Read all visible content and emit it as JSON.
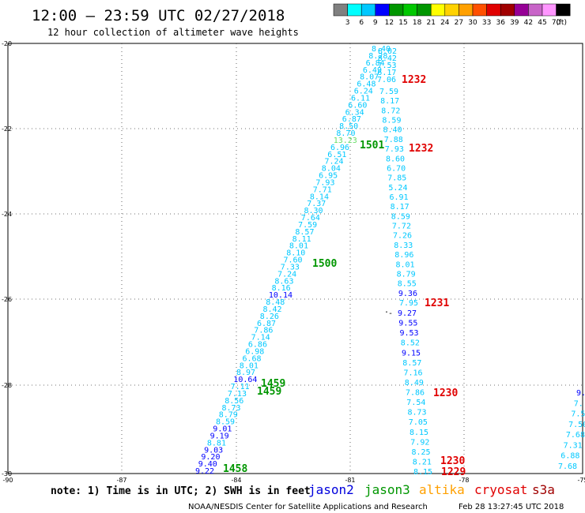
{
  "header": {
    "title": "12:00 – 23:59 UTC 02/27/2018",
    "subtitle": "12 hour collection of altimeter wave heights"
  },
  "legend": {
    "unit": "(ft)",
    "bins": [
      {
        "label": "",
        "color": "#808080"
      },
      {
        "label": "3",
        "color": "#00ffff"
      },
      {
        "label": "6",
        "color": "#00c8ff"
      },
      {
        "label": "9",
        "color": "#0000ff"
      },
      {
        "label": "12",
        "color": "#009600"
      },
      {
        "label": "15",
        "color": "#00c800"
      },
      {
        "label": "18",
        "color": "#009600"
      },
      {
        "label": "21",
        "color": "#ffff00"
      },
      {
        "label": "24",
        "color": "#ffd200"
      },
      {
        "label": "27",
        "color": "#ffa000"
      },
      {
        "label": "30",
        "color": "#ff5000"
      },
      {
        "label": "33",
        "color": "#e00000"
      },
      {
        "label": "36",
        "color": "#a00000"
      },
      {
        "label": "39",
        "color": "#960096"
      },
      {
        "label": "42",
        "color": "#c864c8"
      },
      {
        "label": "45",
        "color": "#ff96ff"
      },
      {
        "label": "70",
        "color": "#000000"
      }
    ]
  },
  "axes": {
    "x_ticks": [
      "-90",
      "-87",
      "-84",
      "-81",
      "-78",
      "-75"
    ],
    "y_ticks": [
      "-20",
      "-22",
      "-24",
      "-26",
      "-28",
      "-30"
    ]
  },
  "tracks": {
    "A": [
      {
        "v": "8.40",
        "c": "#00c8ff"
      },
      {
        "v": "8.28",
        "c": "#00c8ff"
      },
      {
        "v": "6.84",
        "c": "#00c8ff"
      },
      {
        "v": "6.49",
        "c": "#00c8ff"
      },
      {
        "v": "8.07",
        "c": "#00c8ff"
      },
      {
        "v": "6.48",
        "c": "#00c8ff"
      },
      {
        "v": "6.24",
        "c": "#00c8ff"
      },
      {
        "v": "6.11",
        "c": "#00c8ff"
      },
      {
        "v": "6.60",
        "c": "#00c8ff"
      },
      {
        "v": "6.34",
        "c": "#00c8ff"
      },
      {
        "v": "6.87",
        "c": "#00c8ff"
      },
      {
        "v": "8.50",
        "c": "#00c8ff"
      },
      {
        "v": "8.70",
        "c": "#00c8ff"
      },
      {
        "v": "13.23",
        "c": "#66dd66"
      },
      {
        "v": "6.96",
        "c": "#00c8ff"
      },
      {
        "v": "6.51",
        "c": "#00c8ff"
      },
      {
        "v": "7.24",
        "c": "#00c8ff"
      },
      {
        "v": "8.04",
        "c": "#00c8ff"
      },
      {
        "v": "6.95",
        "c": "#00c8ff"
      },
      {
        "v": "7.93",
        "c": "#00c8ff"
      },
      {
        "v": "7.71",
        "c": "#00c8ff"
      },
      {
        "v": "8.14",
        "c": "#00c8ff"
      },
      {
        "v": "7.37",
        "c": "#00c8ff"
      },
      {
        "v": "8.30",
        "c": "#00c8ff"
      },
      {
        "v": "7.64",
        "c": "#00c8ff"
      },
      {
        "v": "7.59",
        "c": "#00c8ff"
      },
      {
        "v": "8.57",
        "c": "#00c8ff"
      },
      {
        "v": "8.11",
        "c": "#00c8ff"
      },
      {
        "v": "8.01",
        "c": "#00c8ff"
      },
      {
        "v": "8.10",
        "c": "#00c8ff"
      },
      {
        "v": "7.60",
        "c": "#00c8ff"
      },
      {
        "v": "7.33",
        "c": "#00c8ff"
      },
      {
        "v": "7.24",
        "c": "#00c8ff"
      },
      {
        "v": "8.63",
        "c": "#00c8ff"
      },
      {
        "v": "8.16",
        "c": "#00c8ff"
      },
      {
        "v": "10.14",
        "c": "#0000ff"
      },
      {
        "v": "8.48",
        "c": "#00c8ff"
      },
      {
        "v": "8.42",
        "c": "#00c8ff"
      },
      {
        "v": "8.26",
        "c": "#00c8ff"
      },
      {
        "v": "6.87",
        "c": "#00c8ff"
      },
      {
        "v": "7.86",
        "c": "#00c8ff"
      },
      {
        "v": "7.14",
        "c": "#00c8ff"
      },
      {
        "v": "6.86",
        "c": "#00c8ff"
      },
      {
        "v": "6.98",
        "c": "#00c8ff"
      },
      {
        "v": "6.68",
        "c": "#00c8ff"
      },
      {
        "v": "8.01",
        "c": "#00c8ff"
      },
      {
        "v": "8.97",
        "c": "#00c8ff"
      },
      {
        "v": "10.64",
        "c": "#0000ff"
      },
      {
        "v": "7.11",
        "c": "#00c8ff"
      },
      {
        "v": "7.13",
        "c": "#00c8ff"
      },
      {
        "v": "8.56",
        "c": "#00c8ff"
      },
      {
        "v": "8.73",
        "c": "#00c8ff"
      },
      {
        "v": "8.79",
        "c": "#00c8ff"
      },
      {
        "v": "8.59",
        "c": "#00c8ff"
      },
      {
        "v": "9.01",
        "c": "#0000ff"
      },
      {
        "v": "9.19",
        "c": "#0000ff"
      },
      {
        "v": "8.81",
        "c": "#00c8ff"
      },
      {
        "v": "9.03",
        "c": "#0000ff"
      },
      {
        "v": "9.20",
        "c": "#0000ff"
      },
      {
        "v": "9.40",
        "c": "#0000ff"
      },
      {
        "v": "9.22",
        "c": "#0000ff"
      }
    ],
    "B": [
      {
        "v": "8.02",
        "c": "#00c8ff"
      },
      {
        "v": "8.42",
        "c": "#00c8ff"
      },
      {
        "v": "7.53",
        "c": "#00c8ff"
      },
      {
        "v": "6.17",
        "c": "#00c8ff"
      },
      {
        "v": "7.06",
        "c": "#00c8ff"
      }
    ],
    "C": [
      {
        "v": "7.59",
        "c": "#00c8ff"
      },
      {
        "v": "8.17",
        "c": "#00c8ff"
      },
      {
        "v": "8.72",
        "c": "#00c8ff"
      },
      {
        "v": "8.59",
        "c": "#00c8ff"
      },
      {
        "v": "8.40",
        "c": "#00c8ff"
      },
      {
        "v": "7.88",
        "c": "#00c8ff"
      },
      {
        "v": "7.93",
        "c": "#00c8ff"
      },
      {
        "v": "8.60",
        "c": "#00c8ff"
      },
      {
        "v": "6.70",
        "c": "#00c8ff"
      },
      {
        "v": "7.85",
        "c": "#00c8ff"
      },
      {
        "v": "5.24",
        "c": "#00c8ff"
      },
      {
        "v": "6.91",
        "c": "#00c8ff"
      },
      {
        "v": "8.17",
        "c": "#00c8ff"
      },
      {
        "v": "8.59",
        "c": "#00c8ff"
      },
      {
        "v": "7.72",
        "c": "#00c8ff"
      },
      {
        "v": "7.26",
        "c": "#00c8ff"
      },
      {
        "v": "8.33",
        "c": "#00c8ff"
      },
      {
        "v": "8.96",
        "c": "#00c8ff"
      },
      {
        "v": "8.01",
        "c": "#00c8ff"
      },
      {
        "v": "8.79",
        "c": "#00c8ff"
      },
      {
        "v": "8.55",
        "c": "#00c8ff"
      },
      {
        "v": "9.36",
        "c": "#0000ff"
      },
      {
        "v": "7.95",
        "c": "#00c8ff"
      }
    ],
    "D": [
      {
        "v": "9.27",
        "c": "#0000ff"
      },
      {
        "v": "9.55",
        "c": "#0000ff"
      },
      {
        "v": "9.53",
        "c": "#0000ff"
      },
      {
        "v": "8.52",
        "c": "#00c8ff"
      },
      {
        "v": "9.15",
        "c": "#0000ff"
      },
      {
        "v": "8.57",
        "c": "#00c8ff"
      },
      {
        "v": "7.16",
        "c": "#00c8ff"
      },
      {
        "v": "8.49",
        "c": "#00c8ff"
      },
      {
        "v": "7.86",
        "c": "#00c8ff"
      },
      {
        "v": "7.54",
        "c": "#00c8ff"
      },
      {
        "v": "8.73",
        "c": "#00c8ff"
      },
      {
        "v": "7.05",
        "c": "#00c8ff"
      },
      {
        "v": "8.15",
        "c": "#00c8ff"
      },
      {
        "v": "7.92",
        "c": "#00c8ff"
      },
      {
        "v": "8.25",
        "c": "#00c8ff"
      },
      {
        "v": "8.21",
        "c": "#00c8ff"
      },
      {
        "v": "8.15",
        "c": "#00c8ff"
      }
    ],
    "E": [
      {
        "v": "9.",
        "c": "#0000ff"
      },
      {
        "v": "7.",
        "c": "#00c8ff"
      },
      {
        "v": "7.5",
        "c": "#00c8ff"
      },
      {
        "v": "7.50",
        "c": "#00c8ff"
      },
      {
        "v": "7.68",
        "c": "#00c8ff"
      },
      {
        "v": "7.31",
        "c": "#00c8ff"
      },
      {
        "v": "6.88",
        "c": "#00c8ff"
      },
      {
        "v": "7.68",
        "c": "#00c8ff"
      }
    ]
  },
  "pass_labels": [
    {
      "t": "1232",
      "c": "#e00000"
    },
    {
      "t": "1232",
      "c": "#e00000"
    },
    {
      "t": "1501",
      "c": "#009600"
    },
    {
      "t": "1500",
      "c": "#009600"
    },
    {
      "t": "1231",
      "c": "#e00000"
    },
    {
      "t": "1459",
      "c": "#009600"
    },
    {
      "t": "1459",
      "c": "#009600"
    },
    {
      "t": "1230",
      "c": "#e00000"
    },
    {
      "t": "1230",
      "c": "#e00000"
    },
    {
      "t": "1229",
      "c": "#e00000"
    },
    {
      "t": "1458",
      "c": "#009600"
    }
  ],
  "footer": {
    "note": "note: 1) Time is in UTC; 2) SWH is in feet",
    "satellites": [
      {
        "name": "jason2",
        "color": "#0000dd"
      },
      {
        "name": "jason3",
        "color": "#009600"
      },
      {
        "name": "altika",
        "color": "#ffa000"
      },
      {
        "name": "cryosat",
        "color": "#e00000"
      },
      {
        "name": "s3a",
        "color": "#a00000"
      }
    ],
    "credit": "NOAA/NESDIS Center for Satellite Applications and Research",
    "timestamp": "Feb 28 13:27:45 UTC 2018"
  }
}
